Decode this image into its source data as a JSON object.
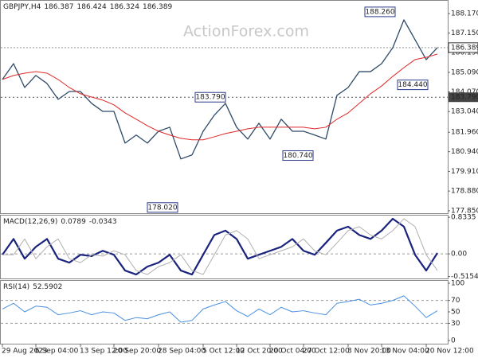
{
  "chart_data": [
    {
      "type": "line",
      "title": "GBPJPY,H4",
      "ohlc": [
        186.387,
        186.424,
        186.324,
        186.389
      ],
      "watermark": "ActionForex.com",
      "categories": [
        "29 Aug 2023",
        null,
        null,
        "6 Sep 04:00",
        null,
        null,
        null,
        "13 Sep 12:00",
        null,
        null,
        "20 Sep 20:00",
        null,
        null,
        null,
        "28 Sep 04:00",
        null,
        null,
        null,
        "5 Oct 12:00",
        null,
        null,
        "12 Oct 20:00",
        null,
        null,
        "20 Oct 04:00",
        null,
        null,
        "27 Oct 12:00",
        null,
        null,
        null,
        "3 Nov 20:00",
        null,
        null,
        "13 Nov 04:00",
        null,
        null,
        null,
        "20 Nov 12:00",
        null
      ],
      "series": [
        {
          "color": "#2e4a68",
          "values": [
            184.72,
            185.55,
            184.3,
            184.93,
            184.51,
            183.68,
            184.09,
            184.09,
            183.47,
            183.05,
            183.05,
            181.39,
            181.81,
            181.39,
            182.01,
            182.22,
            180.56,
            180.77,
            182.01,
            182.85,
            183.47,
            182.22,
            181.6,
            182.43,
            181.6,
            182.64,
            182.01,
            182.01,
            181.81,
            181.6,
            183.89,
            184.3,
            185.13,
            185.13,
            185.55,
            186.38,
            187.84,
            186.8,
            185.76,
            186.39
          ]
        },
        {
          "color": "#e02828",
          "values": [
            184.72,
            184.93,
            185.05,
            185.13,
            185.05,
            184.72,
            184.3,
            183.97,
            183.8,
            183.64,
            183.39,
            182.97,
            182.64,
            182.3,
            182.01,
            181.81,
            181.64,
            181.56,
            181.56,
            181.72,
            181.89,
            182.01,
            182.14,
            182.22,
            182.22,
            182.22,
            182.22,
            182.22,
            182.14,
            182.22,
            182.64,
            182.97,
            183.47,
            183.97,
            184.38,
            184.88,
            185.34,
            185.76,
            185.88,
            186.05
          ]
        }
      ],
      "ylim": [
        177.72,
        188.88
      ],
      "yticks": [
        {
          "value": 188.17,
          "label": "188.170"
        },
        {
          "value": 187.15,
          "label": "187.150"
        },
        {
          "value": 186.13,
          "label": "186.130"
        },
        {
          "value": 185.09,
          "label": "185.090"
        },
        {
          "value": 184.07,
          "label": "184.070"
        },
        {
          "value": 183.04,
          "label": "183.040"
        },
        {
          "value": 181.96,
          "label": "181.960"
        },
        {
          "value": 180.94,
          "label": "180.940"
        },
        {
          "value": 179.91,
          "label": "179.910"
        },
        {
          "value": 178.88,
          "label": "178.880"
        },
        {
          "value": 177.85,
          "label": "177.850"
        }
      ],
      "current_price": 186.389,
      "level": {
        "value": 183.79,
        "label": "183.790"
      },
      "annotations": [
        {
          "value": 188.26,
          "label": "188.260"
        },
        {
          "value": 183.79,
          "label": "183.790"
        },
        {
          "value": 180.74,
          "label": "180.740"
        },
        {
          "value": 184.44,
          "label": "184.440"
        },
        {
          "value": 178.02,
          "label": "178.020"
        }
      ]
    },
    {
      "type": "line",
      "title": "MACD(12,26,9)",
      "header_values": [
        0.0789,
        -0.0343
      ],
      "series": [
        {
          "color": "#1a237e",
          "values": [
            -0.02,
            0.34,
            -0.11,
            0.16,
            0.34,
            -0.11,
            -0.2,
            -0.02,
            -0.05,
            0.07,
            -0.02,
            -0.38,
            -0.47,
            -0.29,
            -0.2,
            -0.02,
            -0.38,
            -0.47,
            -0.02,
            0.43,
            0.53,
            0.34,
            -0.11,
            -0.02,
            0.07,
            0.16,
            0.34,
            0.07,
            -0.02,
            0.25,
            0.53,
            0.62,
            0.43,
            0.34,
            0.53,
            0.8,
            0.62,
            -0.02,
            -0.38,
            0.02
          ]
        },
        {
          "color": "#b0b0b0",
          "values": [
            -0.02,
            -0.02,
            0.34,
            -0.11,
            0.16,
            0.34,
            -0.11,
            -0.2,
            -0.02,
            -0.05,
            0.07,
            -0.02,
            -0.38,
            -0.47,
            -0.29,
            -0.2,
            -0.02,
            -0.38,
            -0.47,
            -0.02,
            0.43,
            0.53,
            0.34,
            -0.11,
            -0.02,
            0.07,
            0.16,
            0.34,
            0.07,
            -0.02,
            0.25,
            0.53,
            0.62,
            0.43,
            0.34,
            0.53,
            0.8,
            0.62,
            -0.02,
            -0.38
          ]
        }
      ],
      "ylim": [
        -0.56,
        0.89
      ],
      "yticks": [
        0.8335,
        {
          "value": 0,
          "label": "0.00"
        },
        -0.5154
      ],
      "levels": [
        0
      ]
    },
    {
      "type": "line",
      "title": "RSI(14)",
      "header_values": [
        52.5902
      ],
      "series": [
        {
          "color": "#4a90e2",
          "values": [
            55,
            65,
            50,
            60,
            58,
            45,
            48,
            52,
            45,
            50,
            48,
            35,
            40,
            38,
            45,
            50,
            32,
            35,
            55,
            62,
            68,
            52,
            42,
            55,
            45,
            58,
            50,
            52,
            48,
            45,
            65,
            68,
            72,
            62,
            65,
            70,
            78,
            60,
            40,
            52
          ]
        }
      ],
      "ylim": [
        -5.6,
        105.6
      ],
      "yticks": [
        100,
        70,
        50,
        30,
        0
      ],
      "levels": [
        70,
        30
      ]
    }
  ]
}
